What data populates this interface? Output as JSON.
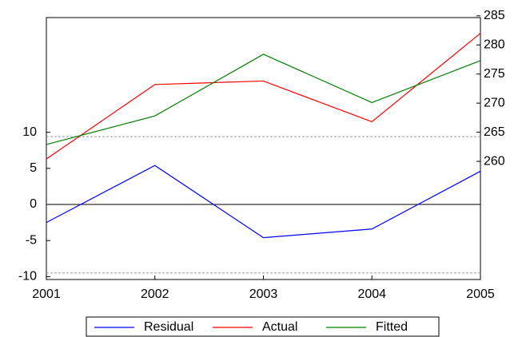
{
  "chart_data": {
    "type": "line",
    "x": [
      2001,
      2002,
      2003,
      2004,
      2005
    ],
    "xlim": [
      2001,
      2005
    ],
    "xticks": [
      2001,
      2002,
      2003,
      2004,
      2005
    ],
    "ylim": [
      -10.4,
      25.9
    ],
    "yticks": [
      -10,
      -5,
      0,
      5,
      10
    ],
    "y2lim": [
      239.7,
      284.7
    ],
    "y2ticks": [
      260,
      265,
      270,
      275,
      280,
      285
    ],
    "reference_lines": [
      9.4,
      -9.5
    ],
    "legend": "bottom",
    "series": [
      {
        "name": "Residual",
        "color": "#0000ff",
        "values": [
          -2.5,
          5.4,
          -4.6,
          -3.4,
          4.6
        ]
      },
      {
        "name": "Actual",
        "color": "#ff0000",
        "axis": "y2",
        "values": [
          260.4,
          273.2,
          273.8,
          266.8,
          282.0
        ]
      },
      {
        "name": "Fitted",
        "color": "#008000",
        "axis": "y2",
        "values": [
          262.9,
          267.8,
          278.4,
          270.1,
          277.3
        ]
      }
    ]
  }
}
